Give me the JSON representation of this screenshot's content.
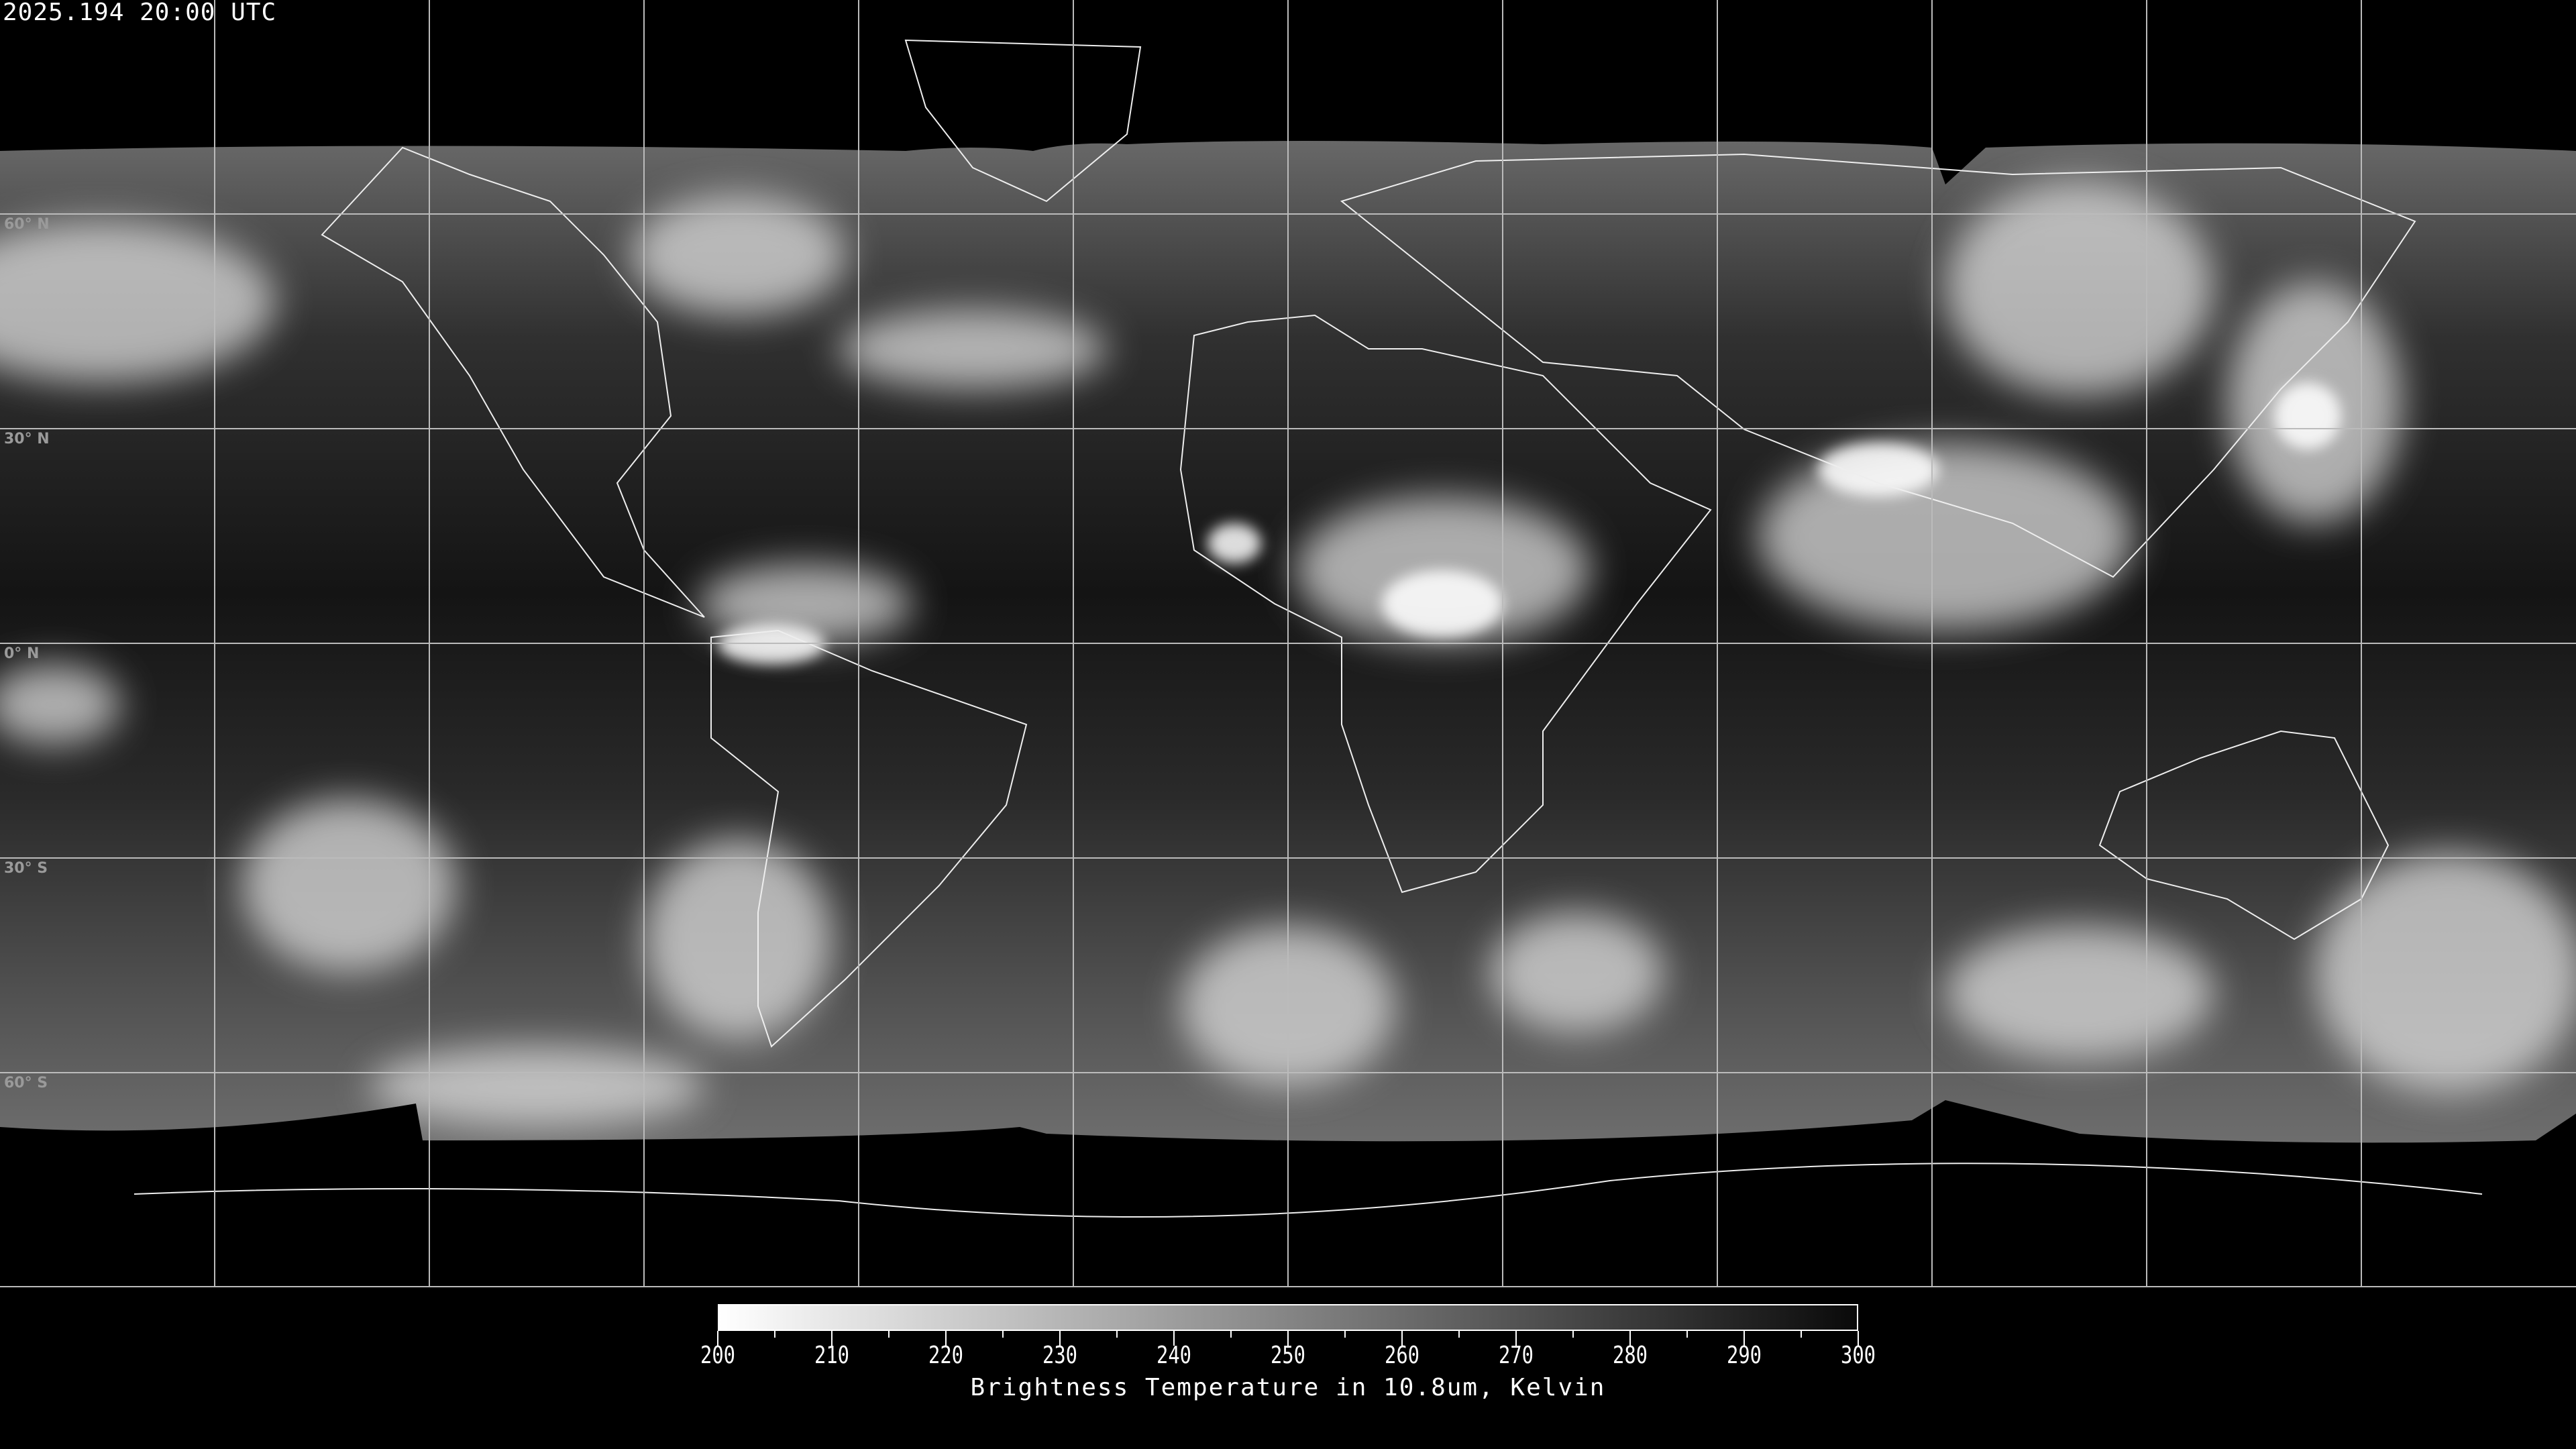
{
  "title": "2025.194 20:00 UTC",
  "latitude_labels": [
    "60° N",
    "30° N",
    "0° N",
    "30° S",
    "60° S"
  ],
  "colorbar": {
    "min": 200,
    "max": 300,
    "ticks": [
      "200",
      "210",
      "220",
      "230",
      "240",
      "250",
      "260",
      "270",
      "280",
      "290",
      "300"
    ],
    "label": "Brightness Temperature in 10.8um, Kelvin",
    "colormap": {
      "low": "#ffffff",
      "high": "#000000"
    }
  }
}
